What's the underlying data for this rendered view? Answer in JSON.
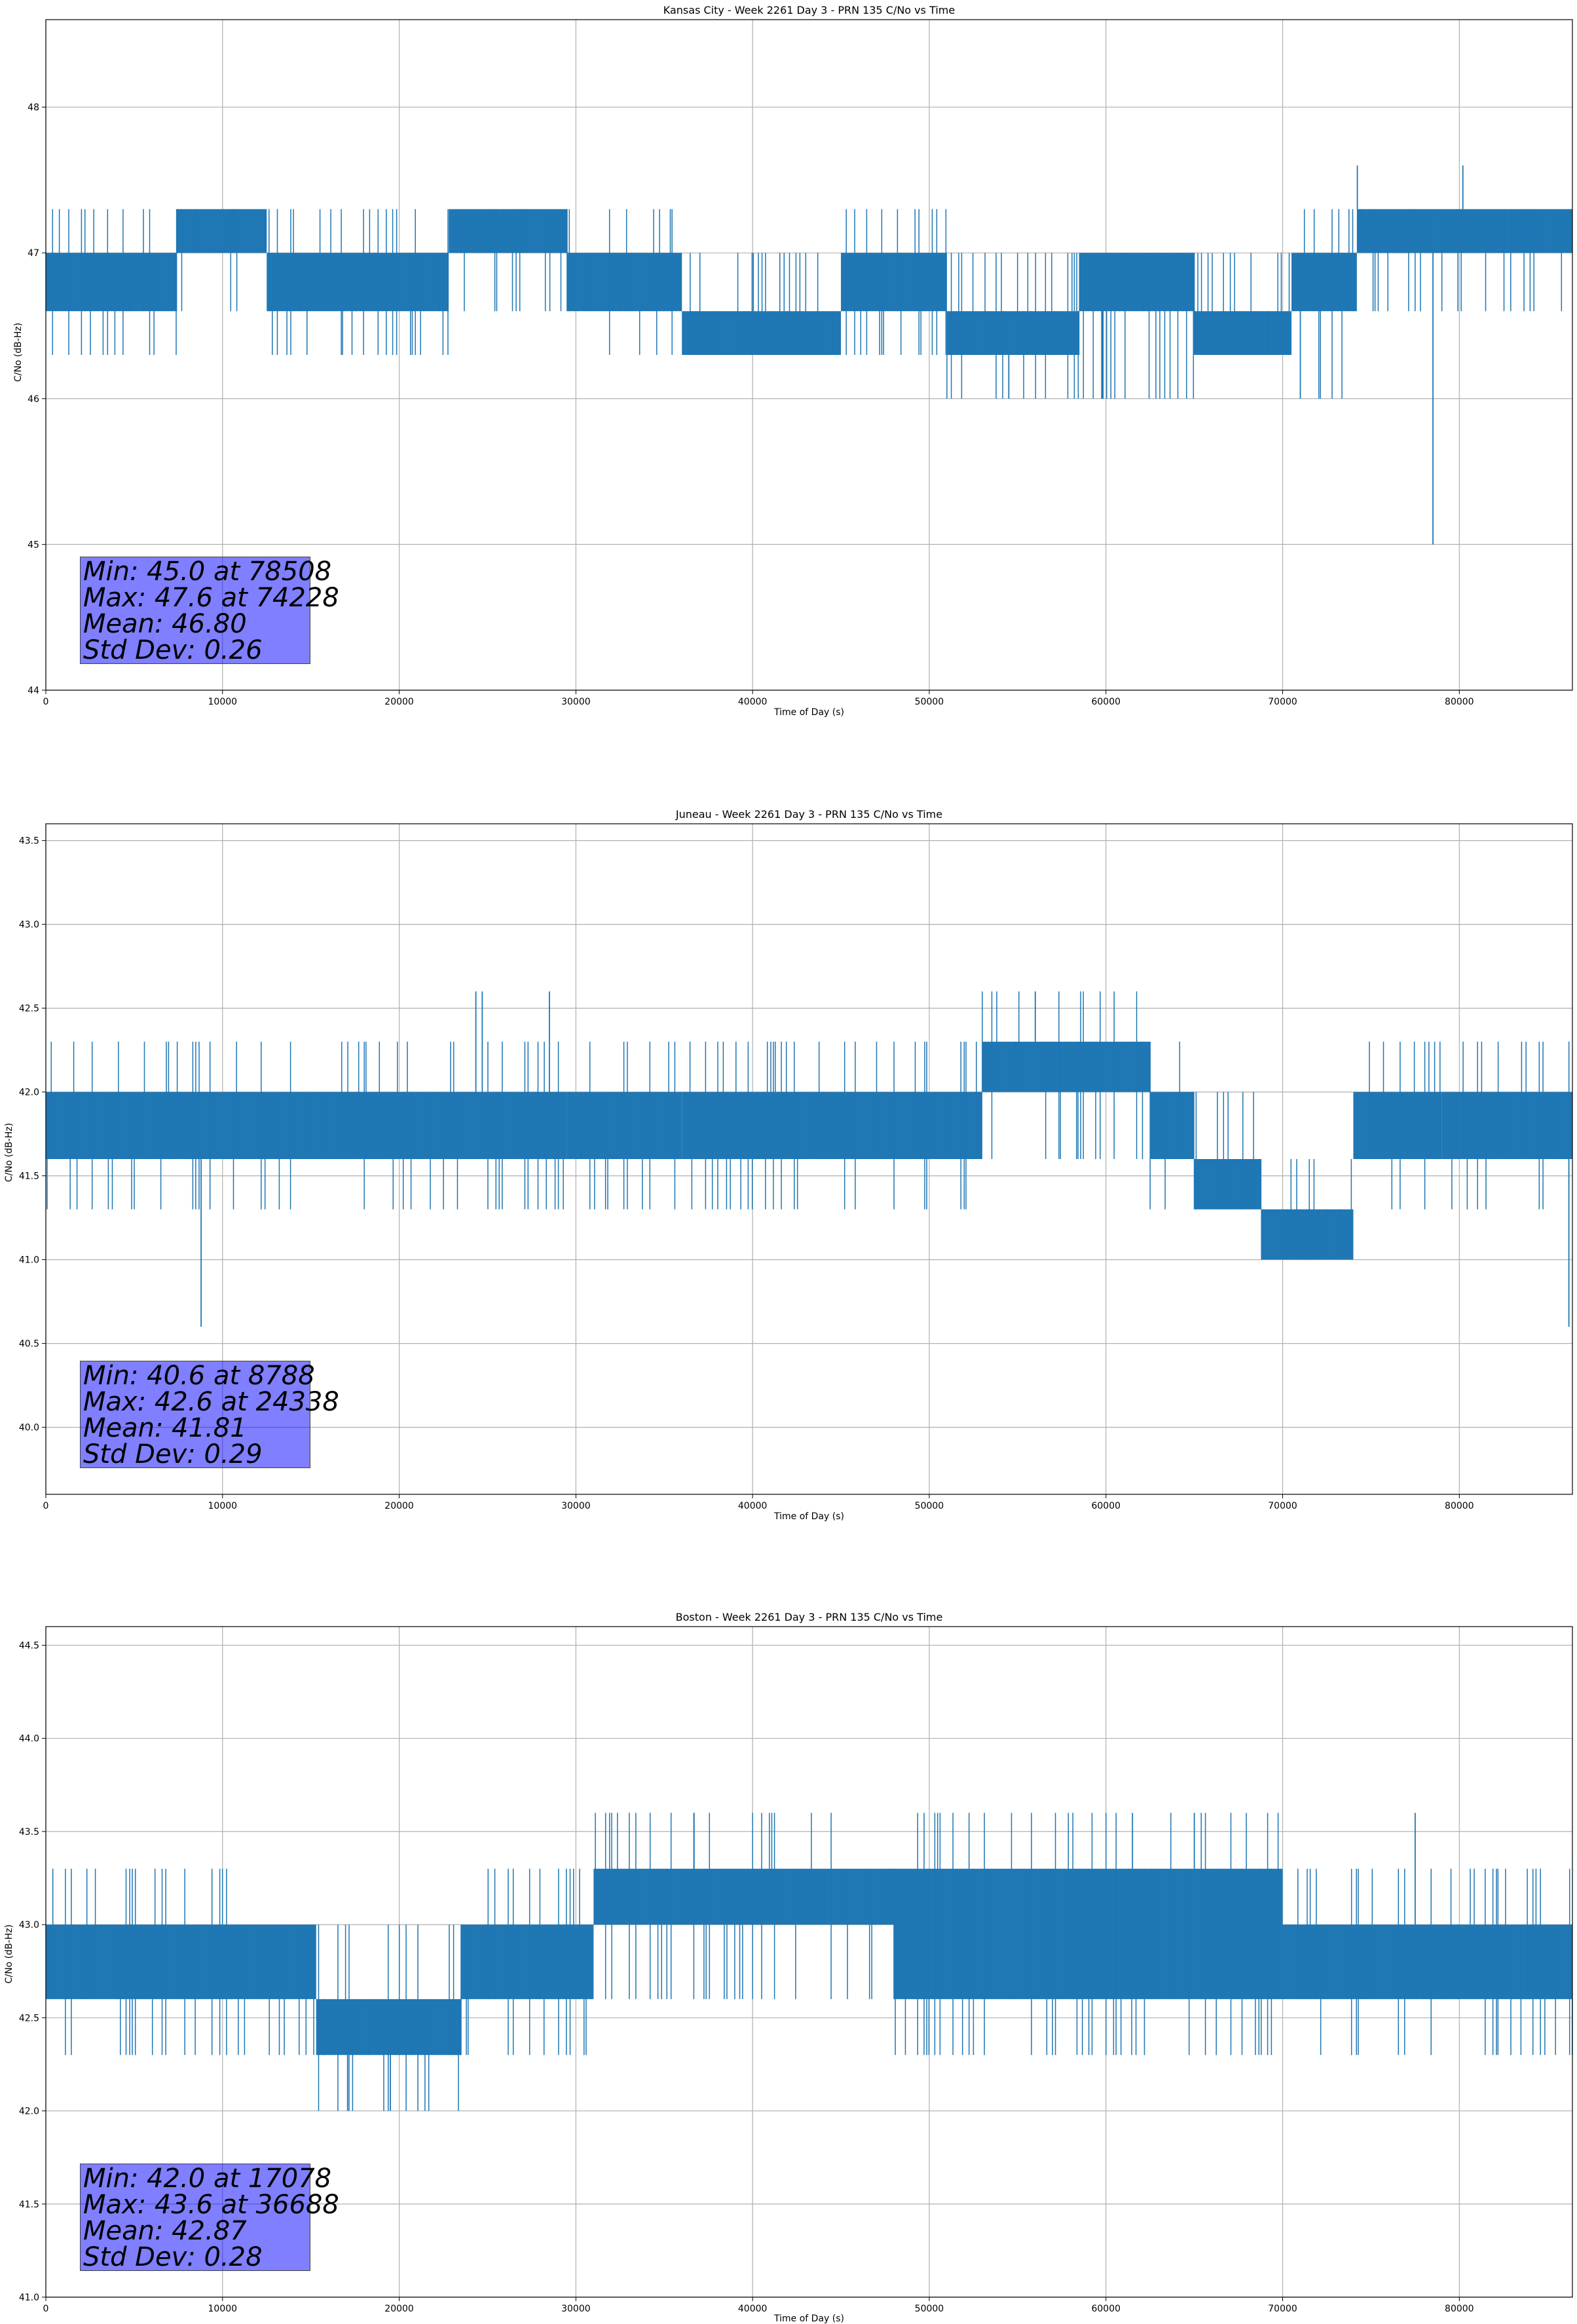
{
  "chart_data": [
    {
      "type": "line",
      "title": "Kansas City - Week 2261 Day 3 - PRN 135 C/No vs Time",
      "xlabel": "Time of Day (s)",
      "ylabel": "C/No (dB-Hz)",
      "xlim": [
        0,
        86400
      ],
      "ylim": [
        44.0,
        48.6
      ],
      "xticks": [
        0,
        10000,
        20000,
        30000,
        40000,
        50000,
        60000,
        70000,
        80000
      ],
      "xtick_labels": [
        "0",
        "10000",
        "20000",
        "30000",
        "40000",
        "50000",
        "60000",
        "70000",
        "80000"
      ],
      "yticks": [
        44,
        45,
        46,
        47,
        48
      ],
      "ytick_labels": [
        "44",
        "45",
        "46",
        "47",
        "48"
      ],
      "grid": true,
      "color": "#1f77b4",
      "series": [
        {
          "name": "C/No",
          "segments": [
            {
              "x0": 0,
              "x1": 7400,
              "lo": 46.6,
              "hi": 47.0,
              "lo_out": 46.3,
              "hi_out": 47.3
            },
            {
              "x0": 7400,
              "x1": 12500,
              "lo": 47.0,
              "hi": 47.3,
              "lo_out": 46.6,
              "hi_out": 47.3
            },
            {
              "x0": 12500,
              "x1": 22800,
              "lo": 46.6,
              "hi": 47.0,
              "lo_out": 46.3,
              "hi_out": 47.3
            },
            {
              "x0": 22800,
              "x1": 29500,
              "lo": 47.0,
              "hi": 47.3,
              "lo_out": 46.6,
              "hi_out": 47.3
            },
            {
              "x0": 29500,
              "x1": 36000,
              "lo": 46.6,
              "hi": 47.0,
              "lo_out": 46.3,
              "hi_out": 47.3
            },
            {
              "x0": 36000,
              "x1": 45000,
              "lo": 46.3,
              "hi": 46.6,
              "lo_out": 46.3,
              "hi_out": 47.0
            },
            {
              "x0": 45000,
              "x1": 51000,
              "lo": 46.6,
              "hi": 47.0,
              "lo_out": 46.3,
              "hi_out": 47.3
            },
            {
              "x0": 51000,
              "x1": 58500,
              "lo": 46.3,
              "hi": 46.6,
              "lo_out": 46.0,
              "hi_out": 47.0
            },
            {
              "x0": 58500,
              "x1": 65000,
              "lo": 46.6,
              "hi": 47.0,
              "lo_out": 46.0,
              "hi_out": 47.0
            },
            {
              "x0": 65000,
              "x1": 70500,
              "lo": 46.3,
              "hi": 46.6,
              "lo_out": 46.3,
              "hi_out": 47.0
            },
            {
              "x0": 70500,
              "x1": 74200,
              "lo": 46.6,
              "hi": 47.0,
              "lo_out": 46.0,
              "hi_out": 47.3
            },
            {
              "x0": 74200,
              "x1": 86400,
              "lo": 47.0,
              "hi": 47.3,
              "lo_out": 46.6,
              "hi_out": 47.3
            }
          ],
          "spikes": [
            {
              "x": 78508,
              "y": 45.0
            },
            {
              "x": 74228,
              "y": 47.6
            },
            {
              "x": 80200,
              "y": 47.6
            },
            {
              "x": 54500,
              "y": 46.0
            },
            {
              "x": 59800,
              "y": 46.0
            },
            {
              "x": 71000,
              "y": 46.0
            }
          ]
        }
      ],
      "stats": {
        "min_line": "Min: 45.0 at 78508",
        "max_line": "Max: 47.6 at 74228",
        "mean_line": "Mean: 46.80",
        "std_line": "Std Dev: 0.26"
      }
    },
    {
      "type": "line",
      "title": "Juneau - Week 2261 Day 3 - PRN 135 C/No vs Time",
      "xlabel": "Time of Day (s)",
      "ylabel": "C/No (dB-Hz)",
      "xlim": [
        0,
        86400
      ],
      "ylim": [
        39.6,
        43.6
      ],
      "xticks": [
        0,
        10000,
        20000,
        30000,
        40000,
        50000,
        60000,
        70000,
        80000
      ],
      "xtick_labels": [
        "0",
        "10000",
        "20000",
        "30000",
        "40000",
        "50000",
        "60000",
        "70000",
        "80000"
      ],
      "yticks": [
        40.0,
        40.5,
        41.0,
        41.5,
        42.0,
        42.5,
        43.0,
        43.5
      ],
      "ytick_labels": [
        "40.0",
        "40.5",
        "41.0",
        "41.5",
        "42.0",
        "42.5",
        "43.0",
        "43.5"
      ],
      "grid": true,
      "color": "#1f77b4",
      "series": [
        {
          "name": "C/No",
          "segments": [
            {
              "x0": 0,
              "x1": 29500,
              "lo": 41.6,
              "hi": 42.0,
              "lo_out": 41.3,
              "hi_out": 42.3
            },
            {
              "x0": 29500,
              "x1": 36000,
              "lo": 41.6,
              "hi": 42.0,
              "lo_out": 41.3,
              "hi_out": 42.3
            },
            {
              "x0": 36000,
              "x1": 53000,
              "lo": 41.6,
              "hi": 42.0,
              "lo_out": 41.3,
              "hi_out": 42.3
            },
            {
              "x0": 53000,
              "x1": 62500,
              "lo": 42.0,
              "hi": 42.3,
              "lo_out": 41.6,
              "hi_out": 42.6
            },
            {
              "x0": 62500,
              "x1": 65000,
              "lo": 41.6,
              "hi": 42.0,
              "lo_out": 41.3,
              "hi_out": 42.3
            },
            {
              "x0": 65000,
              "x1": 68800,
              "lo": 41.3,
              "hi": 41.6,
              "lo_out": 41.3,
              "hi_out": 42.0
            },
            {
              "x0": 68800,
              "x1": 74000,
              "lo": 41.0,
              "hi": 41.3,
              "lo_out": 41.0,
              "hi_out": 41.6
            },
            {
              "x0": 74000,
              "x1": 79000,
              "lo": 41.6,
              "hi": 42.0,
              "lo_out": 41.3,
              "hi_out": 42.3
            },
            {
              "x0": 79000,
              "x1": 86400,
              "lo": 41.6,
              "hi": 42.0,
              "lo_out": 41.3,
              "hi_out": 42.3
            }
          ],
          "spikes": [
            {
              "x": 8788,
              "y": 40.6
            },
            {
              "x": 24338,
              "y": 42.6
            },
            {
              "x": 24700,
              "y": 42.6
            },
            {
              "x": 28500,
              "y": 42.6
            },
            {
              "x": 56000,
              "y": 42.6
            },
            {
              "x": 86200,
              "y": 40.6
            }
          ]
        }
      ],
      "stats": {
        "min_line": "Min: 40.6 at 8788",
        "max_line": "Max: 42.6 at 24338",
        "mean_line": "Mean: 41.81",
        "std_line": "Std Dev: 0.29"
      }
    },
    {
      "type": "line",
      "title": "Boston - Week 2261 Day 3 - PRN 135 C/No vs Time",
      "xlabel": "Time of Day (s)",
      "ylabel": "C/No (dB-Hz)",
      "xlim": [
        0,
        86400
      ],
      "ylim": [
        41.0,
        44.6
      ],
      "xticks": [
        0,
        10000,
        20000,
        30000,
        40000,
        50000,
        60000,
        70000,
        80000
      ],
      "xtick_labels": [
        "0",
        "10000",
        "20000",
        "30000",
        "40000",
        "50000",
        "60000",
        "70000",
        "80000"
      ],
      "yticks": [
        41.0,
        41.5,
        42.0,
        42.5,
        43.0,
        43.5,
        44.0,
        44.5
      ],
      "ytick_labels": [
        "41.0",
        "41.5",
        "42.0",
        "42.5",
        "43.0",
        "43.5",
        "44.0",
        "44.5"
      ],
      "grid": true,
      "color": "#1f77b4",
      "series": [
        {
          "name": "C/No",
          "segments": [
            {
              "x0": 0,
              "x1": 10500,
              "lo": 42.6,
              "hi": 43.0,
              "lo_out": 42.3,
              "hi_out": 43.3
            },
            {
              "x0": 10500,
              "x1": 15300,
              "lo": 42.6,
              "hi": 43.0,
              "lo_out": 42.3,
              "hi_out": 43.0
            },
            {
              "x0": 15300,
              "x1": 23500,
              "lo": 42.3,
              "hi": 42.6,
              "lo_out": 42.0,
              "hi_out": 43.0
            },
            {
              "x0": 23500,
              "x1": 31000,
              "lo": 42.6,
              "hi": 43.0,
              "lo_out": 42.3,
              "hi_out": 43.3
            },
            {
              "x0": 31000,
              "x1": 40000,
              "lo": 43.0,
              "hi": 43.3,
              "lo_out": 42.6,
              "hi_out": 43.6
            },
            {
              "x0": 40000,
              "x1": 48000,
              "lo": 43.0,
              "hi": 43.3,
              "lo_out": 42.6,
              "hi_out": 43.6
            },
            {
              "x0": 48000,
              "x1": 60000,
              "lo": 42.6,
              "hi": 43.3,
              "lo_out": 42.3,
              "hi_out": 43.6
            },
            {
              "x0": 60000,
              "x1": 70000,
              "lo": 42.6,
              "hi": 43.3,
              "lo_out": 42.3,
              "hi_out": 43.6
            },
            {
              "x0": 70000,
              "x1": 86400,
              "lo": 42.6,
              "hi": 43.0,
              "lo_out": 42.3,
              "hi_out": 43.3
            }
          ],
          "spikes": [
            {
              "x": 17078,
              "y": 42.0
            },
            {
              "x": 19500,
              "y": 42.0
            },
            {
              "x": 36688,
              "y": 43.6
            },
            {
              "x": 61500,
              "y": 43.6
            },
            {
              "x": 65000,
              "y": 43.6
            },
            {
              "x": 77500,
              "y": 43.6
            }
          ]
        }
      ],
      "stats": {
        "min_line": "Min: 42.0 at 17078",
        "max_line": "Max: 43.6 at 36688",
        "mean_line": "Mean: 42.87",
        "std_line": "Std Dev: 0.28"
      }
    }
  ]
}
